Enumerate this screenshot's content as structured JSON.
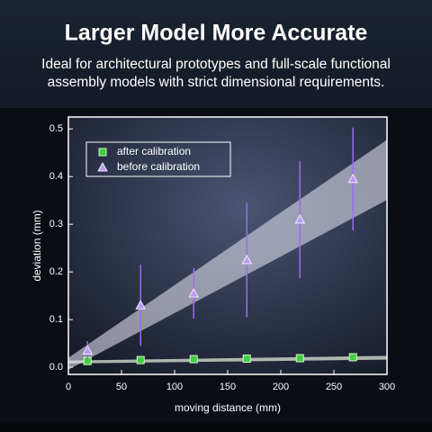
{
  "header": {
    "title": "Larger Model More Accurate",
    "subtitle": [
      "Ideal for architectural prototypes and full-scale functional",
      "assembly models with strict dimensional requirements."
    ]
  },
  "chart_data": {
    "type": "scatter",
    "xlabel": "moving distance (mm)",
    "ylabel": "deviation (mm)",
    "xlim": [
      0,
      300
    ],
    "ylim": [
      -0.015,
      0.525
    ],
    "xticks": [
      0,
      50,
      100,
      150,
      200,
      250,
      300
    ],
    "yticks": [
      {
        "value": 0,
        "label": "0.0"
      },
      0.1,
      0.2,
      0.3,
      0.4,
      0.5
    ],
    "legend": "upper-left",
    "series": [
      {
        "name": "after calibration",
        "color": "#3ecf3e",
        "marker": "square",
        "x": [
          18,
          68,
          118,
          168,
          218,
          268
        ],
        "values": [
          0.013,
          0.015,
          0.017,
          0.018,
          0.019,
          0.021
        ],
        "band": {
          "x": [
            0,
            300
          ],
          "upper": [
            0.014,
            0.024
          ],
          "lower": [
            0.008,
            0.016
          ]
        }
      },
      {
        "name": "before calibration",
        "color": "#b79cf0",
        "marker": "triangle",
        "x": [
          18,
          68,
          118,
          168,
          218,
          268
        ],
        "values": [
          0.035,
          0.13,
          0.155,
          0.225,
          0.31,
          0.395
        ],
        "errors": [
          0.02,
          0.085,
          0.053,
          0.12,
          0.123,
          0.108
        ],
        "band": {
          "x": [
            0,
            300
          ],
          "upper": [
            0.02,
            0.477
          ],
          "lower": [
            -0.005,
            0.351
          ]
        }
      }
    ]
  }
}
